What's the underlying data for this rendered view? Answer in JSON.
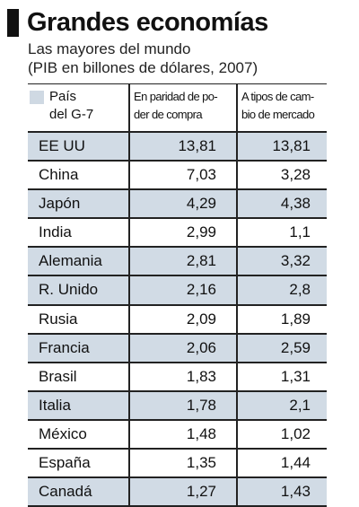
{
  "chart_data": {
    "type": "table",
    "title": "Grandes economías",
    "subtitle_line1": "Las mayores del mundo",
    "subtitle_line2": "(PIB en billones de dólares, 2007)",
    "columns": [
      "País\ndel G-7",
      "En paridad de po-\nder de compra",
      "A tipos de cam-\nbio de mercado"
    ],
    "legend_swatch_color": "#cfd9e3",
    "rows": [
      {
        "country": "EE UU",
        "ppp": "13,81",
        "market": "13,81",
        "g7": true
      },
      {
        "country": "China",
        "ppp": "7,03",
        "market": "3,28",
        "g7": false
      },
      {
        "country": "Japón",
        "ppp": "4,29",
        "market": "4,38",
        "g7": true
      },
      {
        "country": "India",
        "ppp": "2,99",
        "market": "1,1",
        "g7": false
      },
      {
        "country": "Alemania",
        "ppp": "2,81",
        "market": "3,32",
        "g7": true
      },
      {
        "country": "R. Unido",
        "ppp": "2,16",
        "market": "2,8",
        "g7": true
      },
      {
        "country": "Rusia",
        "ppp": "2,09",
        "market": "1,89",
        "g7": false
      },
      {
        "country": "Francia",
        "ppp": "2,06",
        "market": "2,59",
        "g7": true
      },
      {
        "country": "Brasil",
        "ppp": "1,83",
        "market": "1,31",
        "g7": false
      },
      {
        "country": "Italia",
        "ppp": "1,78",
        "market": "2,1",
        "g7": true
      },
      {
        "country": "México",
        "ppp": "1,48",
        "market": "1,02",
        "g7": false
      },
      {
        "country": "España",
        "ppp": "1,35",
        "market": "1,44",
        "g7": false
      },
      {
        "country": "Canadá",
        "ppp": "1,27",
        "market": "1,43",
        "g7": true
      }
    ]
  }
}
